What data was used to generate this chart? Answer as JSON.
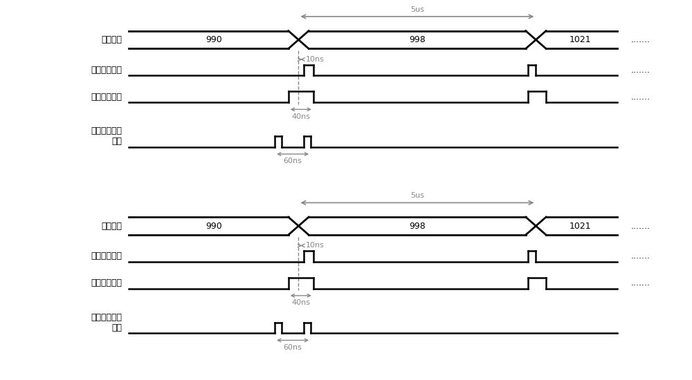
{
  "bg_color": "#ffffff",
  "line_color": "#000000",
  "arrow_color": "#888888",
  "dashed_color": "#888888",
  "labels": [
    "波形数据",
    "数据有效信号",
    "数据展宽信号",
    "两次读取请求\n信号"
  ],
  "dots": ".......",
  "ann_5us": "5us",
  "ann_10ns": "10ns",
  "ann_40ns": "40ns",
  "ann_60ns": "60ns",
  "val_990": "990",
  "val_998": "998",
  "val_1021": "1021",
  "font_label": 9,
  "font_annot": 8,
  "font_val": 9,
  "lw_bus": 2.0,
  "lw_sig": 1.8
}
